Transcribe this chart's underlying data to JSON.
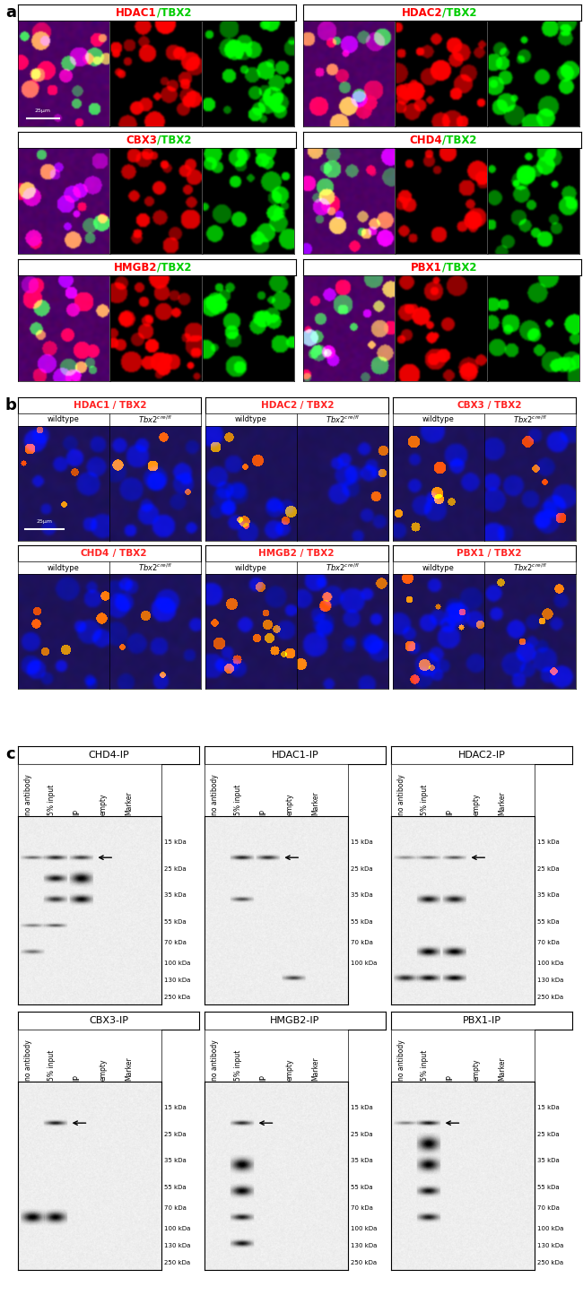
{
  "panel_a_groups": [
    {
      "prot": "HDAC1",
      "tbx": "TBX2"
    },
    {
      "prot": "HDAC2",
      "tbx": "TBX2"
    },
    {
      "prot": "CBX3",
      "tbx": "TBX2"
    },
    {
      "prot": "CHD4",
      "tbx": "TBX2"
    },
    {
      "prot": "HMGB2",
      "tbx": "TBX2"
    },
    {
      "prot": "PBX1",
      "tbx": "TBX2"
    }
  ],
  "panel_b_groups": [
    {
      "prot": "HDAC1",
      "tbx": "TBX2"
    },
    {
      "prot": "HDAC2",
      "tbx": "TBX2"
    },
    {
      "prot": "CBX3",
      "tbx": "TBX2"
    },
    {
      "prot": "CHD4",
      "tbx": "TBX2"
    },
    {
      "prot": "HMGB2",
      "tbx": "TBX2"
    },
    {
      "prot": "PBX1",
      "tbx": "TBX2"
    }
  ],
  "panel_c_titles": [
    "CHD4-IP",
    "HDAC1-IP",
    "HDAC2-IP",
    "CBX3-IP",
    "HMGB2-IP",
    "PBX1-IP"
  ],
  "marker_labels": [
    "250 kDa",
    "130 kDa",
    "100 kDa",
    "70 kDa",
    "55 kDa",
    "35 kDa",
    "25 kDa",
    "15 kDa"
  ],
  "lane_labels": [
    "no antibody",
    "5% input",
    "IP",
    "empty",
    "Marker"
  ],
  "scale_bar": "25μm",
  "bg_color": "#ffffff",
  "red_color": "#ff0000",
  "green_color": "#00bb00",
  "red_b_color": "#ff2222",
  "title_red": "#ff0000",
  "title_green": "#00cc00"
}
